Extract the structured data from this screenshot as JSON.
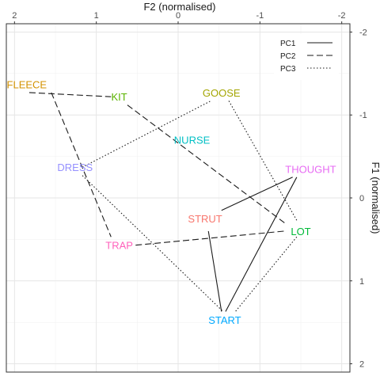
{
  "chart_data": {
    "type": "scatter",
    "xlabel": "F2 (normalised)",
    "ylabel": "F1 (normalised)",
    "xlim": [
      2.1,
      -2.1
    ],
    "ylim": [
      -2.1,
      2.1
    ],
    "x_ticks": [
      2,
      1,
      0,
      -1,
      -2
    ],
    "y_ticks": [
      -2,
      -1,
      0,
      1,
      2
    ],
    "x_tick_labels": [
      "2",
      "1",
      "0",
      "-1",
      "-2"
    ],
    "y_tick_labels": [
      "-2",
      "-1",
      "0",
      "1",
      "2"
    ],
    "x_axis_position": "top",
    "y_axis_position": "right",
    "x_reversed": true,
    "y_reversed": true,
    "grid": true,
    "points": [
      {
        "label": "FLEECE",
        "x": 1.85,
        "y": -1.37,
        "color": "#D39200"
      },
      {
        "label": "KIT",
        "x": 0.72,
        "y": -1.22,
        "color": "#5BB300"
      },
      {
        "label": "GOOSE",
        "x": -0.53,
        "y": -1.27,
        "color": "#A3A500"
      },
      {
        "label": "NURSE",
        "x": -0.17,
        "y": -0.7,
        "color": "#00BFC4"
      },
      {
        "label": "DRESS",
        "x": 1.26,
        "y": -0.37,
        "color": "#9590FF"
      },
      {
        "label": "THOUGHT",
        "x": -1.62,
        "y": -0.35,
        "color": "#E76BF3"
      },
      {
        "label": "STRUT",
        "x": -0.33,
        "y": 0.25,
        "color": "#F8766D"
      },
      {
        "label": "LOT",
        "x": -1.5,
        "y": 0.4,
        "color": "#00BA38"
      },
      {
        "label": "TRAP",
        "x": 0.72,
        "y": 0.57,
        "color": "#FF62BC"
      },
      {
        "label": "START",
        "x": -0.57,
        "y": 1.47,
        "color": "#00A9FF"
      }
    ],
    "segments": [
      {
        "series": "PC1",
        "x1": -0.53,
        "y1": 0.15,
        "x2": -1.4,
        "y2": -0.25
      },
      {
        "series": "PC1",
        "x1": -0.37,
        "y1": 0.4,
        "x2": -0.53,
        "y2": 1.37
      },
      {
        "series": "PC1",
        "x1": -0.58,
        "y1": 1.37,
        "x2": -1.45,
        "y2": -0.25
      },
      {
        "series": "PC2",
        "x1": 1.82,
        "y1": -1.27,
        "x2": 0.82,
        "y2": -1.22
      },
      {
        "series": "PC2",
        "x1": 0.62,
        "y1": -1.12,
        "x2": -1.3,
        "y2": 0.3
      },
      {
        "series": "PC2",
        "x1": 1.55,
        "y1": -1.27,
        "x2": 0.82,
        "y2": 0.47
      },
      {
        "series": "PC2",
        "x1": 0.52,
        "y1": 0.57,
        "x2": -1.3,
        "y2": 0.4
      },
      {
        "series": "PC3",
        "x1": 1.17,
        "y1": -0.37,
        "x2": -0.4,
        "y2": -1.17
      },
      {
        "series": "PC3",
        "x1": -0.62,
        "y1": -1.17,
        "x2": -1.45,
        "y2": 0.27
      },
      {
        "series": "PC3",
        "x1": -1.45,
        "y1": 0.47,
        "x2": -0.7,
        "y2": 1.37
      },
      {
        "series": "PC3",
        "x1": 1.17,
        "y1": -0.27,
        "x2": -0.55,
        "y2": 1.37
      }
    ],
    "legend": {
      "position": "top-right",
      "entries": [
        {
          "name": "PC1",
          "dash": "solid"
        },
        {
          "name": "PC2",
          "dash": "dashed"
        },
        {
          "name": "PC3",
          "dash": "dotted"
        }
      ]
    }
  }
}
